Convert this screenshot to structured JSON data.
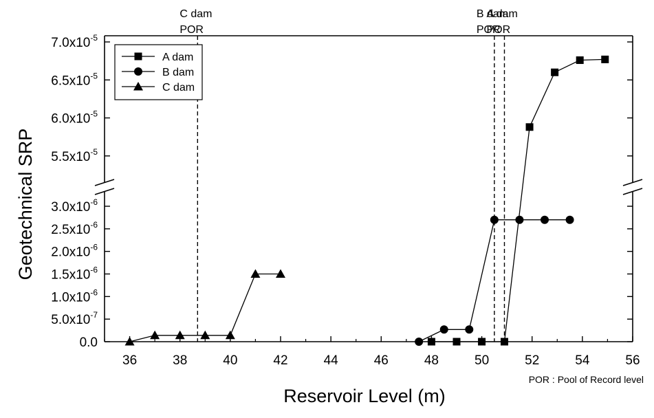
{
  "chart_data": {
    "type": "line",
    "xlabel": "Reservoir Level (m)",
    "ylabel": "Geotechnical SRP",
    "xlim": [
      35,
      56
    ],
    "x_ticks": [
      "36",
      "38",
      "40",
      "42",
      "44",
      "46",
      "48",
      "50",
      "52",
      "54",
      "56"
    ],
    "y_axis_break": true,
    "upper_panel": {
      "ylim": [
        5.1e-05,
        7e-05
      ],
      "ticks": [
        {
          "value": 5.5e-05,
          "mant": "5.5x10",
          "exp": "-5"
        },
        {
          "value": 6e-05,
          "mant": "6.0x10",
          "exp": "-5"
        },
        {
          "value": 6.5e-05,
          "mant": "6.5x10",
          "exp": "-5"
        },
        {
          "value": 7e-05,
          "mant": "7.0x10",
          "exp": "-5"
        }
      ]
    },
    "lower_panel": {
      "ylim": [
        0,
        3e-06
      ],
      "ticks": [
        {
          "value": 0,
          "mant": "0.0",
          "exp": ""
        },
        {
          "value": 5e-07,
          "mant": "5.0x10",
          "exp": "-7"
        },
        {
          "value": 1e-06,
          "mant": "1.0x10",
          "exp": "-6"
        },
        {
          "value": 1.5e-06,
          "mant": "1.5x10",
          "exp": "-6"
        },
        {
          "value": 2e-06,
          "mant": "2.0x10",
          "exp": "-6"
        },
        {
          "value": 2.5e-06,
          "mant": "2.5x10",
          "exp": "-6"
        },
        {
          "value": 3e-06,
          "mant": "3.0x10",
          "exp": "-6"
        }
      ]
    },
    "legend_position": "top-left",
    "series": [
      {
        "name": "A dam",
        "marker": "square",
        "x": [
          48.0,
          49.0,
          50.0,
          50.9,
          51.9,
          52.9,
          53.9,
          54.9
        ],
        "y": [
          0,
          0,
          0,
          0,
          5.88e-05,
          6.6e-05,
          6.76e-05,
          6.77e-05
        ]
      },
      {
        "name": "B dam",
        "marker": "circle",
        "x": [
          47.5,
          48.5,
          49.5,
          50.5,
          51.5,
          52.5,
          53.5
        ],
        "y": [
          0,
          2.7e-07,
          2.7e-07,
          2.7e-06,
          2.7e-06,
          2.7e-06,
          2.7e-06
        ]
      },
      {
        "name": "C dam",
        "marker": "triangle",
        "x": [
          36,
          37,
          38,
          39,
          40,
          41,
          42
        ],
        "y": [
          0,
          1.4e-07,
          1.4e-07,
          1.4e-07,
          1.4e-07,
          1.5e-06,
          1.5e-06
        ]
      }
    ],
    "reference_lines": [
      {
        "x": 38.7,
        "label_line1": "C dam",
        "label_line2": "POR"
      },
      {
        "x": 50.5,
        "label_line1": "B dam",
        "label_line2": "POR"
      },
      {
        "x": 50.9,
        "label_line1": "A dam",
        "label_line2": "POR"
      }
    ],
    "footnote": "POR : Pool of Record level"
  }
}
